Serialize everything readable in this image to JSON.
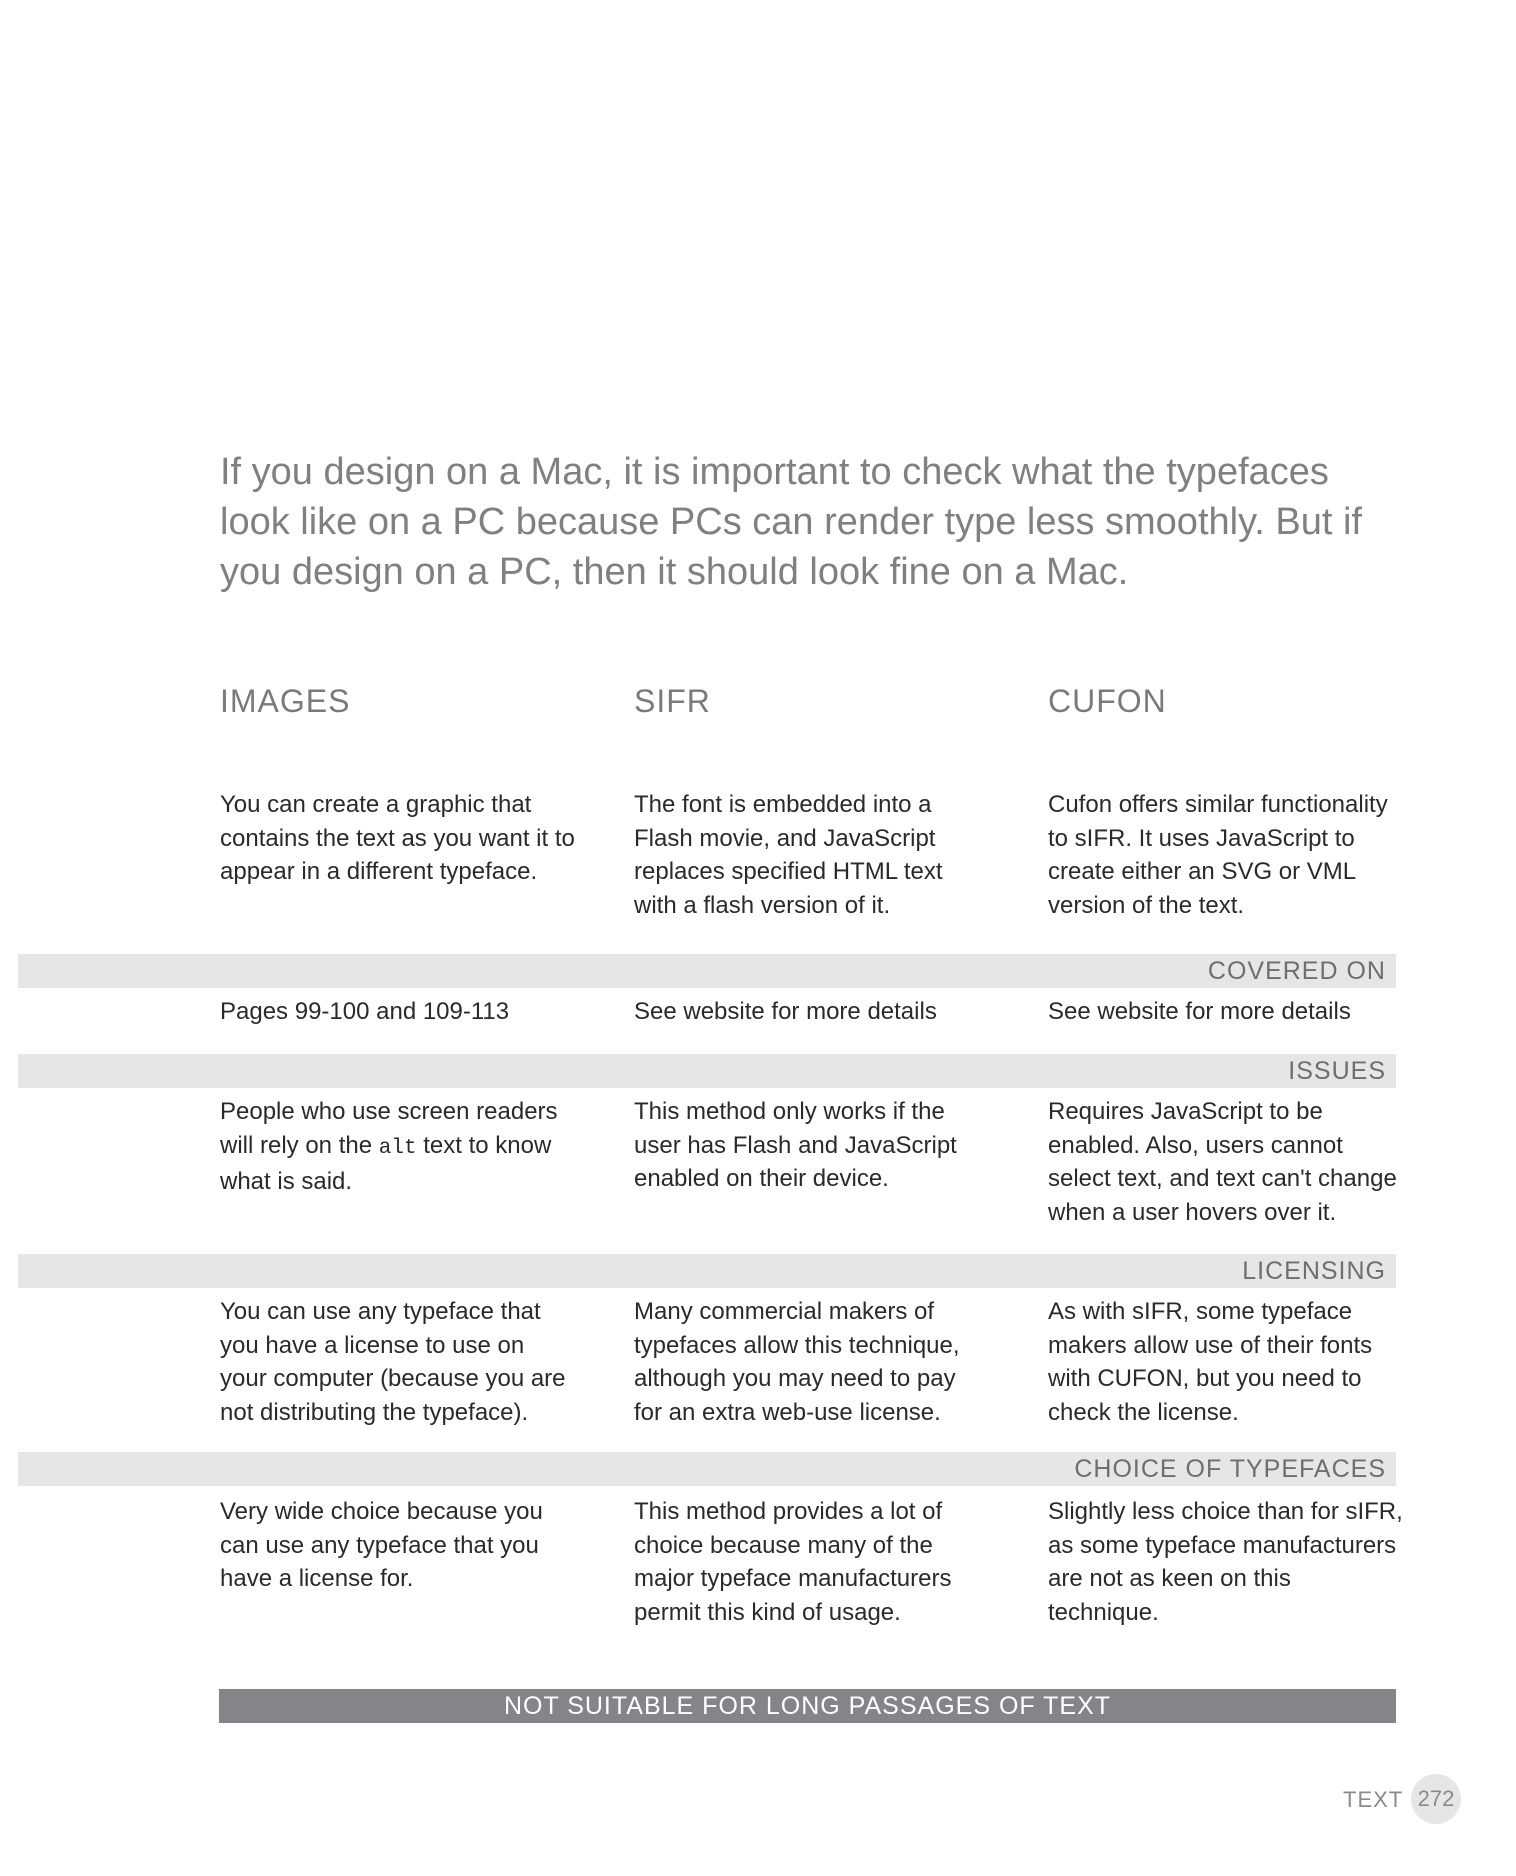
{
  "intro": "If you design on a Mac, it is important to check what the typefaces look like on a PC because PCs can render type less smoothly. But if you design on a PC, then it should look fine on a Mac.",
  "columns": [
    "IMAGES",
    "SIFR",
    "CUFON"
  ],
  "description": {
    "images": "You can create a graphic that contains the text as you want it to appear in a different typeface.",
    "sifr": "The font is embedded into a Flash movie, and JavaScript replaces specified HTML text with a flash version of it.",
    "cufon": "Cufon offers similar functionality to sIFR. It uses JavaScript to create either an SVG or VML version of the text."
  },
  "sections": {
    "covered_on": {
      "label": "COVERED ON",
      "images": "Pages 99-100 and 109-113",
      "sifr": "See website for more details",
      "cufon": "See website for more details"
    },
    "issues": {
      "label": "ISSUES",
      "images_before": "People who use screen readers will rely on the ",
      "images_code": "alt",
      "images_after": " text to know what is said.",
      "sifr": "This method only works if the user has Flash and JavaScript enabled on their device.",
      "cufon": "Requires JavaScript to be enabled. Also, users cannot select text, and text can't change when a user hovers over it."
    },
    "licensing": {
      "label": "LICENSING",
      "images": "You can use any typeface that you have a license to use on your computer (because you are not distributing the typeface).",
      "sifr": "Many commercial makers of typefaces allow this technique, although you may need to pay for an extra web-use license.",
      "cufon": "As with sIFR, some typeface makers allow use of their fonts with CUFON, but you need to check the license."
    },
    "choice": {
      "label": "CHOICE OF TYPEFACES",
      "images": "Very wide choice because you can use any typeface that you have a license for.",
      "sifr": "This method provides a lot of choice because many of the major typeface manufacturers permit this kind of usage.",
      "cufon": "Slightly less choice than for sIFR, as some typeface manufacturers are not as keen on this technique."
    }
  },
  "footer_bar": "NOT SUITABLE FOR LONG PASSAGES OF TEXT",
  "page": {
    "section": "TEXT",
    "number": "272"
  }
}
